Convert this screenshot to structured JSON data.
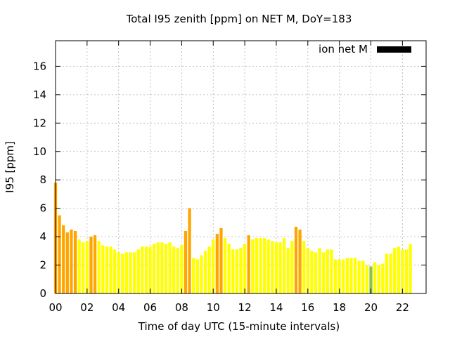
{
  "chart_data": {
    "type": "bar",
    "title": "Total I95 zenith [ppm] on NET M, DoY=183",
    "xlabel": "Time of day UTC (15-minute intervals)",
    "ylabel": "I95 [ppm]",
    "ylim": [
      0,
      17.8
    ],
    "xlim": [
      0,
      23.5
    ],
    "xticks": [
      "00",
      "02",
      "04",
      "06",
      "08",
      "10",
      "12",
      "14",
      "16",
      "18",
      "20",
      "22"
    ],
    "xtick_values": [
      0,
      2,
      4,
      6,
      8,
      10,
      12,
      14,
      16,
      18,
      20,
      22
    ],
    "yticks": [
      0,
      2,
      4,
      6,
      8,
      10,
      12,
      14,
      16
    ],
    "grid": true,
    "legend": {
      "position": "top-right",
      "label": "ion net M",
      "color": "#000000"
    },
    "bar_interval_hours": 0.25,
    "x_start": 0,
    "colors": {
      "yellow": "#ffff00",
      "orange": "#ffa500",
      "green": "#8bc34a"
    },
    "values": [
      7.8,
      5.5,
      4.8,
      4.3,
      4.5,
      4.4,
      3.8,
      3.6,
      3.7,
      4.0,
      4.1,
      3.7,
      3.4,
      3.3,
      3.3,
      3.1,
      2.9,
      2.8,
      2.9,
      2.9,
      2.9,
      3.1,
      3.3,
      3.3,
      3.3,
      3.5,
      3.6,
      3.6,
      3.5,
      3.6,
      3.3,
      3.2,
      3.4,
      4.4,
      6.0,
      2.5,
      2.4,
      2.7,
      3.0,
      3.3,
      3.8,
      4.2,
      4.6,
      3.9,
      3.5,
      3.1,
      3.1,
      3.2,
      3.5,
      4.1,
      3.8,
      3.9,
      3.9,
      3.9,
      3.8,
      3.7,
      3.6,
      3.6,
      3.9,
      3.2,
      3.7,
      4.7,
      4.5,
      3.7,
      3.2,
      3.0,
      2.9,
      3.2,
      2.9,
      3.1,
      3.1,
      2.4,
      2.4,
      2.4,
      2.5,
      2.5,
      2.5,
      2.3,
      2.3,
      2.0,
      1.9,
      2.2,
      2.0,
      2.1,
      2.8,
      2.8,
      3.2,
      3.3,
      3.1,
      3.1,
      3.5
    ],
    "bar_colors": [
      "orange",
      "orange",
      "orange",
      "orange",
      "orange",
      "orange",
      "yellow",
      "yellow",
      "yellow",
      "orange",
      "orange",
      "yellow",
      "yellow",
      "yellow",
      "yellow",
      "yellow",
      "yellow",
      "yellow",
      "yellow",
      "yellow",
      "yellow",
      "yellow",
      "yellow",
      "yellow",
      "yellow",
      "yellow",
      "yellow",
      "yellow",
      "yellow",
      "yellow",
      "yellow",
      "yellow",
      "yellow",
      "orange",
      "orange",
      "yellow",
      "yellow",
      "yellow",
      "yellow",
      "yellow",
      "yellow",
      "orange",
      "orange",
      "yellow",
      "yellow",
      "yellow",
      "yellow",
      "yellow",
      "yellow",
      "orange",
      "yellow",
      "yellow",
      "yellow",
      "yellow",
      "yellow",
      "yellow",
      "yellow",
      "yellow",
      "yellow",
      "yellow",
      "yellow",
      "orange",
      "orange",
      "yellow",
      "yellow",
      "yellow",
      "yellow",
      "yellow",
      "yellow",
      "yellow",
      "yellow",
      "yellow",
      "yellow",
      "yellow",
      "yellow",
      "yellow",
      "yellow",
      "yellow",
      "yellow",
      "yellow",
      "green",
      "yellow",
      "yellow",
      "yellow",
      "yellow",
      "yellow",
      "yellow",
      "yellow",
      "yellow",
      "yellow",
      "yellow"
    ]
  }
}
